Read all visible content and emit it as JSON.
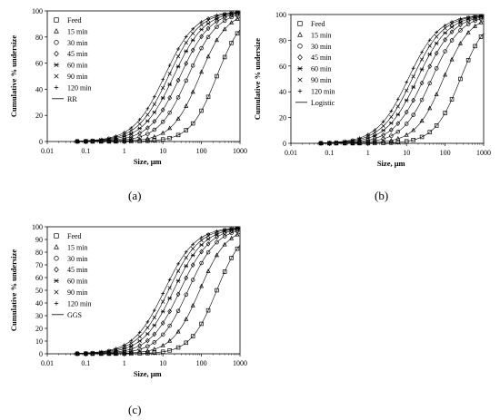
{
  "figure": {
    "captions": [
      "(a)",
      "(b)",
      "(c)"
    ]
  },
  "chart_data": [
    {
      "type": "scatter",
      "panel": "(a)",
      "xlabel": "Size, μm",
      "ylabel": "Cumulative % undersize",
      "x_scale": "log",
      "xlim": [
        0.01,
        1000
      ],
      "ylim": [
        0,
        100
      ],
      "x_ticks": [
        "0.01",
        "0.1",
        "1",
        "10",
        "100",
        "1000"
      ],
      "y_ticks": [
        "0",
        "20",
        "40",
        "60",
        "80",
        "100"
      ],
      "legend_position": "upper-left",
      "fit_label": "RR",
      "series": [
        {
          "name": "Feed",
          "marker": "square",
          "d50": 250,
          "spread": 0.95
        },
        {
          "name": "15 min",
          "marker": "triangle",
          "d50": 90,
          "spread": 0.9
        },
        {
          "name": "30 min",
          "marker": "circle",
          "d50": 45,
          "spread": 0.85
        },
        {
          "name": "45 min",
          "marker": "diamond",
          "d50": 28,
          "spread": 0.82
        },
        {
          "name": "60 min",
          "marker": "asterisk",
          "d50": 19,
          "spread": 0.8
        },
        {
          "name": "90 min",
          "marker": "cross",
          "d50": 14,
          "spread": 0.8
        },
        {
          "name": "120 min",
          "marker": "plus",
          "d50": 11,
          "spread": 0.8
        }
      ]
    },
    {
      "type": "scatter",
      "panel": "(b)",
      "xlabel": "Size, μm",
      "ylabel": "Cumulative % undersize",
      "x_scale": "log",
      "xlim": [
        0.01,
        1000
      ],
      "ylim": [
        0,
        100
      ],
      "x_ticks": [
        "0.01",
        "0.1",
        "1",
        "10",
        "100",
        "1000"
      ],
      "y_ticks": [
        "0",
        "20",
        "40",
        "60",
        "80",
        "100"
      ],
      "legend_position": "upper-left",
      "fit_label": "Logistic",
      "series": [
        {
          "name": "Feed",
          "marker": "square",
          "d50": 250,
          "spread": 0.95
        },
        {
          "name": "15 min",
          "marker": "triangle",
          "d50": 90,
          "spread": 0.9
        },
        {
          "name": "30 min",
          "marker": "circle",
          "d50": 45,
          "spread": 0.85
        },
        {
          "name": "45 min",
          "marker": "diamond",
          "d50": 28,
          "spread": 0.82
        },
        {
          "name": "60 min",
          "marker": "asterisk",
          "d50": 19,
          "spread": 0.8
        },
        {
          "name": "90 min",
          "marker": "cross",
          "d50": 14,
          "spread": 0.8
        },
        {
          "name": "120 min",
          "marker": "plus",
          "d50": 11,
          "spread": 0.8
        }
      ]
    },
    {
      "type": "scatter",
      "panel": "(c)",
      "xlabel": "Size, μm",
      "ylabel": "Cumulative % undersize",
      "x_scale": "log",
      "xlim": [
        0.01,
        1000
      ],
      "ylim": [
        0,
        100
      ],
      "x_ticks": [
        "0.01",
        "0.1",
        "1",
        "10",
        "100",
        "1000"
      ],
      "y_ticks": [
        "0",
        "10",
        "20",
        "30",
        "40",
        "50",
        "60",
        "70",
        "80",
        "90",
        "100"
      ],
      "legend_position": "upper-left",
      "fit_label": "GGS",
      "series": [
        {
          "name": "Feed",
          "marker": "square",
          "d50": 250,
          "spread": 0.95
        },
        {
          "name": "15 min",
          "marker": "triangle",
          "d50": 90,
          "spread": 0.9
        },
        {
          "name": "30 min",
          "marker": "circle",
          "d50": 45,
          "spread": 0.85
        },
        {
          "name": "45 min",
          "marker": "diamond",
          "d50": 28,
          "spread": 0.82
        },
        {
          "name": "60 min",
          "marker": "asterisk",
          "d50": 19,
          "spread": 0.8
        },
        {
          "name": "90 min",
          "marker": "cross",
          "d50": 14,
          "spread": 0.8
        },
        {
          "name": "120 min",
          "marker": "plus",
          "d50": 11,
          "spread": 0.8
        }
      ]
    }
  ]
}
